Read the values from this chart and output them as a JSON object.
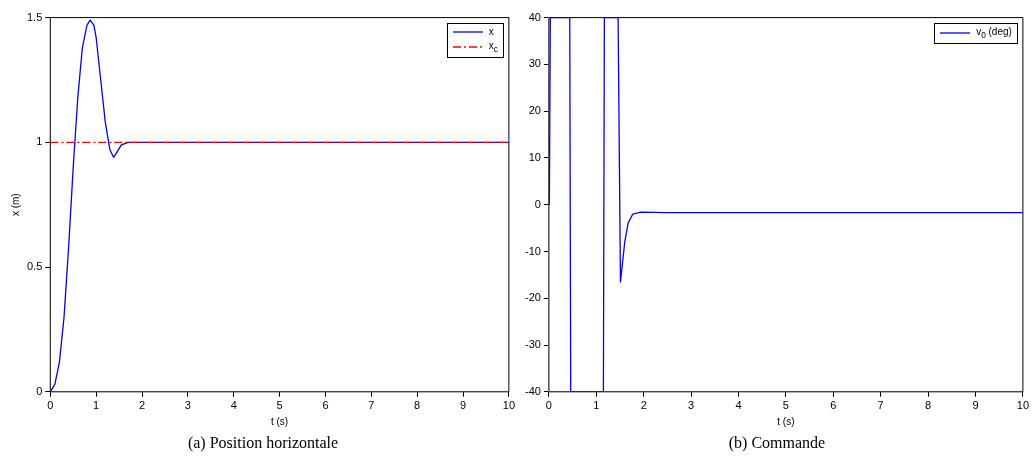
{
  "chart_data": [
    {
      "type": "line",
      "xlabel": "t (s)",
      "ylabel": "x (m)",
      "xlim": [
        0,
        10
      ],
      "xticks": [
        0,
        1,
        2,
        3,
        4,
        5,
        6,
        7,
        8,
        9,
        10
      ],
      "ylim": [
        0,
        1.5
      ],
      "yticks": [
        0,
        0.5,
        1,
        1.5
      ],
      "grid": false,
      "legend": "top right",
      "annotations": [
        "(a) Position horizontale"
      ],
      "series": [
        {
          "name": "x",
          "color": "#0000ff",
          "line_style": "solid",
          "x": [
            0,
            0.1,
            0.2,
            0.3,
            0.4,
            0.5,
            0.6,
            0.7,
            0.8,
            0.87,
            0.95,
            1.0,
            1.1,
            1.2,
            1.3,
            1.38,
            1.45,
            1.55,
            1.7,
            2,
            10
          ],
          "values": [
            0,
            0.03,
            0.12,
            0.3,
            0.58,
            0.9,
            1.18,
            1.38,
            1.47,
            1.49,
            1.47,
            1.42,
            1.25,
            1.08,
            0.97,
            0.94,
            0.96,
            0.99,
            1.0,
            1.0,
            1.0
          ]
        },
        {
          "name": "x$_{c}$",
          "color": "#ff0000",
          "line_style": "dashed",
          "x": [
            0,
            10
          ],
          "values": [
            1,
            1
          ]
        }
      ]
    },
    {
      "type": "line",
      "xlabel": "t (s)",
      "xlim": [
        0,
        10
      ],
      "xticks": [
        0,
        1,
        2,
        3,
        4,
        5,
        6,
        7,
        8,
        9,
        10
      ],
      "ylim": [
        -40,
        40
      ],
      "yticks": [
        -40,
        -30,
        -20,
        -10,
        0,
        10,
        20,
        30,
        40
      ],
      "grid": false,
      "legend": "top right",
      "annotations": [
        "(b) Commande"
      ],
      "series": [
        {
          "name": "v$_{0}$ (deg)",
          "color": "#0000ff",
          "line_style": "solid",
          "x": [
            0,
            0.01,
            0.03,
            0.44,
            0.46,
            1.15,
            1.17,
            1.46,
            1.51,
            1.6,
            1.67,
            1.77,
            1.94,
            2.5,
            10
          ],
          "values": [
            0,
            0,
            40,
            40,
            -40,
            -40,
            40,
            40,
            -16.5,
            -8,
            -4,
            -2,
            -1.6,
            -1.7,
            -1.7
          ]
        }
      ]
    }
  ]
}
